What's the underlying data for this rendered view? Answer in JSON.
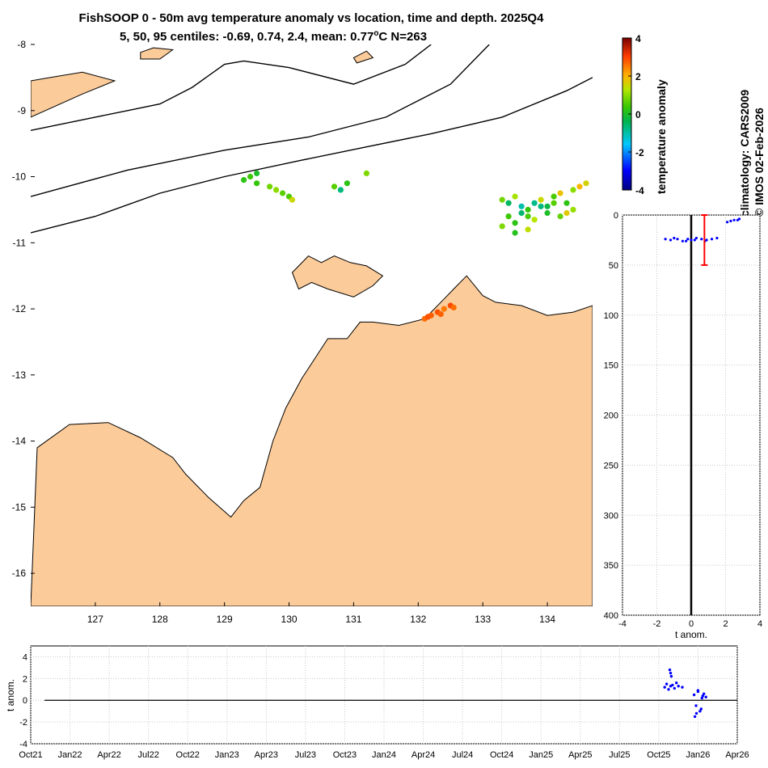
{
  "title": {
    "line1": "FishSOOP 0 - 50m avg temperature anomaly vs location, time and depth. 2025Q4",
    "line2_prefix": "5, 50, 95 centiles: -0.69, 0.74, 2.4, mean: 0.77",
    "line2_unit_sup": "o",
    "line2_suffix": "C N=263"
  },
  "side_text": {
    "climatology": "climatology: CARS2009",
    "copyright": "© IMOS 02-Feb-2026"
  },
  "colors": {
    "land": "#fbcb9a",
    "marker_blue": "#0000ff",
    "error_bar": "#ff0000",
    "grid": "#c8c8c8"
  },
  "chart_data": [
    {
      "type": "scatter",
      "name": "map",
      "xlim": [
        126,
        134.7
      ],
      "ylim": [
        -16.5,
        -8
      ],
      "x_ticks": [
        127,
        128,
        129,
        130,
        131,
        132,
        133,
        134
      ],
      "y_ticks": [
        -8,
        -9,
        -10,
        -11,
        -12,
        -13,
        -14,
        -15,
        -16
      ],
      "coastline": [
        [
          126,
          -16.5
        ],
        [
          126.1,
          -14.1
        ],
        [
          126.6,
          -13.75
        ],
        [
          127.2,
          -13.72
        ],
        [
          127.7,
          -13.95
        ],
        [
          128.2,
          -14.25
        ],
        [
          128.4,
          -14.5
        ],
        [
          128.75,
          -14.85
        ],
        [
          129.1,
          -15.15
        ],
        [
          129.3,
          -14.9
        ],
        [
          129.55,
          -14.7
        ],
        [
          129.75,
          -14.0
        ],
        [
          129.95,
          -13.5
        ],
        [
          130.2,
          -13.05
        ],
        [
          130.4,
          -12.75
        ],
        [
          130.6,
          -12.45
        ],
        [
          130.9,
          -12.45
        ],
        [
          131.1,
          -12.2
        ],
        [
          131.3,
          -12.2
        ],
        [
          131.7,
          -12.25
        ],
        [
          132.1,
          -12.15
        ],
        [
          132.4,
          -11.85
        ],
        [
          132.55,
          -11.7
        ],
        [
          132.75,
          -11.5
        ],
        [
          133.0,
          -11.8
        ],
        [
          133.2,
          -11.9
        ],
        [
          133.6,
          -11.95
        ],
        [
          134.0,
          -12.1
        ],
        [
          134.4,
          -12.05
        ],
        [
          134.7,
          -11.95
        ],
        [
          134.7,
          -16.5
        ]
      ],
      "melville_island": [
        [
          130.05,
          -11.45
        ],
        [
          130.3,
          -11.2
        ],
        [
          130.5,
          -11.3
        ],
        [
          130.7,
          -11.2
        ],
        [
          130.95,
          -11.3
        ],
        [
          131.2,
          -11.35
        ],
        [
          131.45,
          -11.5
        ],
        [
          131.3,
          -11.65
        ],
        [
          131.0,
          -11.82
        ],
        [
          130.6,
          -11.7
        ],
        [
          130.35,
          -11.6
        ],
        [
          130.15,
          -11.7
        ]
      ],
      "north_land": [
        [
          126,
          -9.1
        ],
        [
          126.8,
          -8.75
        ],
        [
          127.3,
          -8.55
        ],
        [
          126.8,
          -8.42
        ],
        [
          126.3,
          -8.5
        ],
        [
          126,
          -8.55
        ]
      ],
      "small_islands": [
        [
          [
            127.7,
            -8.12
          ],
          [
            127.9,
            -8.05
          ],
          [
            128.2,
            -8.08
          ],
          [
            128.0,
            -8.22
          ],
          [
            127.7,
            -8.22
          ]
        ],
        [
          [
            131.0,
            -8.2
          ],
          [
            131.2,
            -8.1
          ],
          [
            131.3,
            -8.2
          ],
          [
            131.05,
            -8.28
          ]
        ]
      ],
      "contours": [
        [
          [
            126,
            -9.3
          ],
          [
            127.0,
            -9.1
          ],
          [
            127.5,
            -9.0
          ],
          [
            128.0,
            -8.9
          ],
          [
            128.5,
            -8.65
          ],
          [
            129.0,
            -8.3
          ],
          [
            129.3,
            -8.25
          ],
          [
            130.0,
            -8.35
          ],
          [
            131.0,
            -8.6
          ],
          [
            131.8,
            -8.3
          ],
          [
            132.2,
            -8.0
          ]
        ],
        [
          [
            126,
            -10.3
          ],
          [
            127.5,
            -9.9
          ],
          [
            129.0,
            -9.6
          ],
          [
            130.3,
            -9.4
          ],
          [
            131.5,
            -9.1
          ],
          [
            132.5,
            -8.6
          ],
          [
            133.1,
            -8.0
          ]
        ],
        [
          [
            126,
            -10.85
          ],
          [
            127.0,
            -10.6
          ],
          [
            128.0,
            -10.25
          ],
          [
            129.0,
            -10.0
          ],
          [
            130.2,
            -9.75
          ],
          [
            131.2,
            -9.55
          ],
          [
            132.2,
            -9.35
          ],
          [
            133.3,
            -9.1
          ],
          [
            134.3,
            -8.7
          ],
          [
            134.7,
            -8.5
          ]
        ]
      ],
      "clusters": [
        {
          "lon": [
            129.3,
            129.4,
            129.5,
            129.7,
            129.8,
            129.9,
            130.0,
            130.05,
            129.5
          ],
          "lat": [
            -10.05,
            -10.0,
            -9.95,
            -10.15,
            -10.2,
            -10.25,
            -10.3,
            -10.35,
            -10.1
          ],
          "anom": [
            0.2,
            0.4,
            0.0,
            0.8,
            1.0,
            0.6,
            0.5,
            1.5,
            0.3
          ]
        },
        {
          "lon": [
            130.7,
            130.8,
            130.9,
            131.2
          ],
          "lat": [
            -10.15,
            -10.2,
            -10.1,
            -9.95
          ],
          "anom": [
            0.6,
            -0.7,
            0.2,
            0.9
          ]
        },
        {
          "lon": [
            133.3,
            133.4,
            133.5,
            133.6,
            133.7,
            133.8,
            133.9,
            134.0,
            134.1,
            134.2,
            134.3,
            134.4,
            134.5,
            134.6,
            133.4,
            133.6,
            133.8,
            134.0,
            134.2,
            134.4,
            133.3,
            133.5,
            133.7,
            133.9,
            134.1,
            134.3,
            133.5,
            133.7
          ],
          "lat": [
            -10.35,
            -10.4,
            -10.3,
            -10.45,
            -10.5,
            -10.4,
            -10.35,
            -10.45,
            -10.3,
            -10.25,
            -10.4,
            -10.2,
            -10.15,
            -10.1,
            -10.6,
            -10.55,
            -10.65,
            -10.55,
            -10.6,
            -10.5,
            -10.75,
            -10.7,
            -10.8,
            -10.45,
            -10.4,
            -10.55,
            -10.85,
            -10.6
          ],
          "anom": [
            0.8,
            -0.5,
            1.2,
            -1.0,
            0.3,
            -0.8,
            1.5,
            -0.3,
            0.5,
            1.8,
            0.2,
            1.0,
            2.0,
            1.6,
            0.4,
            -0.6,
            1.3,
            0.0,
            0.7,
            1.1,
            0.9,
            0.2,
            1.4,
            -0.7,
            0.6,
            1.7,
            0.1,
            0.5
          ]
        },
        {
          "lon": [
            132.1,
            132.2,
            132.3,
            132.4,
            132.5,
            132.55,
            132.35,
            132.15
          ],
          "lat": [
            -12.15,
            -12.1,
            -12.05,
            -12.0,
            -11.95,
            -11.98,
            -12.08,
            -12.12
          ],
          "anom": [
            2.6,
            2.7,
            2.8,
            2.5,
            2.9,
            2.6,
            2.7,
            2.8
          ]
        }
      ]
    },
    {
      "type": "colorbar",
      "name": "colorbar",
      "label": "temperature anomaly",
      "range": [
        -4,
        4
      ],
      "ticks": [
        4,
        2,
        0,
        -2,
        -4
      ]
    },
    {
      "type": "scatter",
      "name": "depth_profile",
      "xlabel": "t anom.",
      "xlim": [
        -4,
        4
      ],
      "ylim": [
        0,
        400
      ],
      "x_ticks": [
        -4,
        -2,
        0,
        2,
        4
      ],
      "y_ticks": [
        0,
        50,
        100,
        150,
        200,
        250,
        300,
        350,
        400
      ],
      "errorbar": {
        "center": 0.77,
        "top": 0,
        "bottom": 50
      },
      "points": {
        "anom": [
          -1.5,
          -1.2,
          -1.0,
          -0.8,
          -0.5,
          -0.2,
          0.0,
          0.3,
          0.6,
          0.9,
          1.2,
          1.5,
          2.1,
          2.3,
          2.5,
          2.7,
          2.8,
          -0.3,
          0.2,
          0.8
        ],
        "depth": [
          24,
          25,
          23,
          24,
          26,
          24,
          25,
          23,
          24,
          25,
          24,
          23,
          7,
          6,
          5,
          5,
          4,
          26,
          25,
          26
        ]
      }
    },
    {
      "type": "scatter",
      "name": "time_series",
      "ylabel": "t anom.",
      "ylim": [
        -4,
        5
      ],
      "y_ticks": [
        4,
        2,
        0,
        -2,
        -4
      ],
      "x_ticks": [
        "Oct21",
        "Jan22",
        "Apr22",
        "Jul22",
        "Oct22",
        "Jan23",
        "Apr23",
        "Jul23",
        "Oct23",
        "Jan24",
        "Apr24",
        "Jul24",
        "Oct24",
        "Jan25",
        "Apr25",
        "Jul25",
        "Oct25",
        "Jan26",
        "Apr26"
      ],
      "points": {
        "t": [
          16.15,
          16.2,
          16.25,
          16.3,
          16.35,
          16.4,
          16.45,
          16.5,
          16.6,
          16.28,
          16.3,
          16.32,
          16.9,
          16.95,
          17.0,
          17.05,
          17.1,
          17.15,
          17.2,
          16.92,
          17.0,
          17.08,
          16.96,
          17.12
        ],
        "anom": [
          1.2,
          1.5,
          1.0,
          1.3,
          1.4,
          1.1,
          1.6,
          1.3,
          1.2,
          2.8,
          2.5,
          2.2,
          0.5,
          -0.5,
          0.8,
          -1.0,
          0.2,
          0.6,
          0.3,
          -1.5,
          0.9,
          -0.8,
          -1.2,
          0.4
        ]
      }
    }
  ]
}
